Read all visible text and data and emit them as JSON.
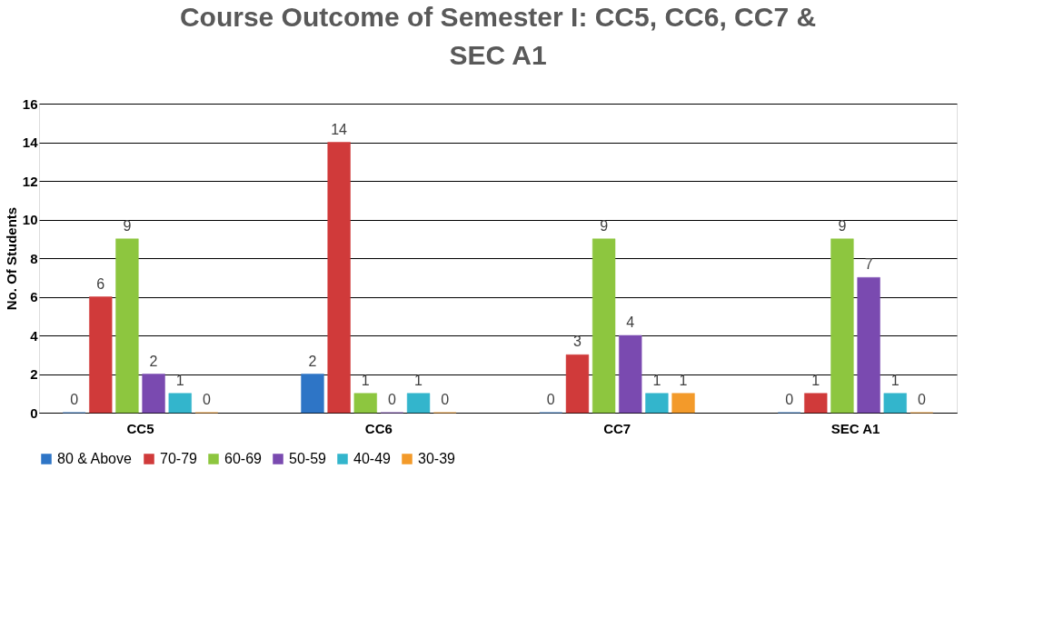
{
  "chart_data": {
    "type": "bar",
    "title": "Course Outcome of Semester I: CC5, CC6, CC7 & SEC A1",
    "ylabel": "No. Of Students",
    "categories": [
      "CC5",
      "CC6",
      "CC7",
      "SEC A1"
    ],
    "series": [
      {
        "name": "80 & Above",
        "color": "#2e75c6",
        "values": [
          0,
          2,
          0,
          0
        ]
      },
      {
        "name": "70-79",
        "color": "#d03a3a",
        "values": [
          6,
          14,
          3,
          1
        ]
      },
      {
        "name": "60-69",
        "color": "#8dc63f",
        "values": [
          9,
          1,
          9,
          9
        ]
      },
      {
        "name": "50-59",
        "color": "#7a4ab0",
        "values": [
          2,
          0,
          4,
          7
        ]
      },
      {
        "name": "40-49",
        "color": "#33b5cc",
        "values": [
          1,
          1,
          1,
          1
        ]
      },
      {
        "name": "30-39",
        "color": "#f39a2a",
        "values": [
          0,
          0,
          1,
          0
        ]
      }
    ],
    "ylim": [
      0,
      16
    ],
    "yticks": [
      0,
      2,
      4,
      6,
      8,
      10,
      12,
      14,
      16
    ],
    "grid": "y",
    "legend": "bottom",
    "data_labels": true
  }
}
